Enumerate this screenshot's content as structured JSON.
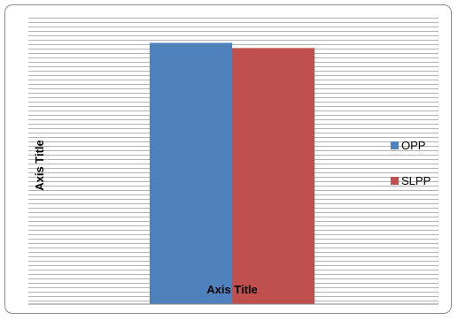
{
  "chart_data": {
    "type": "bar",
    "categories": [
      ""
    ],
    "series": [
      {
        "name": "OPP",
        "values": [
          301
        ],
        "color": "#4f81bd"
      },
      {
        "name": "SLPP",
        "values": [
          295
        ],
        "color": "#c0504d"
      }
    ],
    "xlabel": "Axis Title",
    "ylabel": "Axis Title",
    "ylim": [
      0,
      330
    ],
    "grid": true,
    "legend_position": "right"
  }
}
